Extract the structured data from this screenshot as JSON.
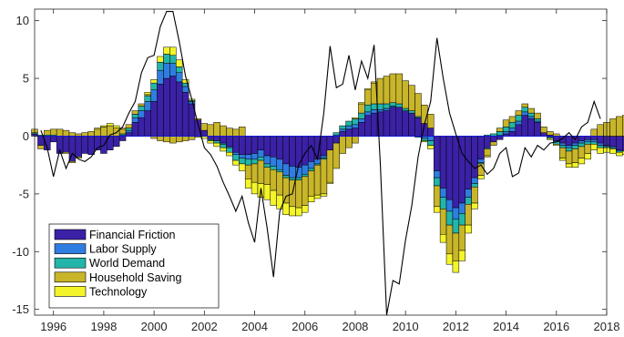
{
  "chart_data": {
    "type": "bar",
    "subtype": "stacked-bar-with-line",
    "title": "",
    "xlabel": "",
    "ylabel": "",
    "xlim": [
      1995.25,
      2018
    ],
    "ylim": [
      -15.5,
      11
    ],
    "xticks": [
      1996,
      1998,
      2000,
      2002,
      2004,
      2006,
      2008,
      2010,
      2012,
      2014,
      2016,
      2018
    ],
    "yticks": [
      -15,
      -10,
      -5,
      0,
      5,
      10
    ],
    "grid": false,
    "legend_position": "bottom-left",
    "start": [
      1995,
      2
    ],
    "freq": "quarterly",
    "series": [
      {
        "name": "Financial Friction",
        "color": "#3b21a6",
        "values": [
          0.2,
          -0.8,
          -1.2,
          -0.5,
          -1.5,
          -1.4,
          -2.2,
          -1.8,
          -1.5,
          -1.6,
          -1.2,
          -1.5,
          -1.2,
          -0.9,
          -0.4,
          0.3,
          1.2,
          1.6,
          2.2,
          3.0,
          4.5,
          5.0,
          5.2,
          4.7,
          3.8,
          2.8,
          1.4,
          0.5,
          -0.3,
          -0.4,
          -0.6,
          -0.9,
          -1.4,
          -1.6,
          -1.6,
          -1.5,
          -1.2,
          -1.7,
          -1.8,
          -2.0,
          -2.4,
          -2.6,
          -2.7,
          -2.5,
          -2.2,
          -2.0,
          -1.7,
          -1.2,
          -0.6,
          0.4,
          0.6,
          0.7,
          1.2,
          1.8,
          2.0,
          2.1,
          2.2,
          2.5,
          2.5,
          2.2,
          2.0,
          1.6,
          1.1,
          0.7,
          -3.0,
          -4.5,
          -5.5,
          -6.2,
          -5.8,
          -4.6,
          -3.6,
          -2.0,
          -1.0,
          -0.5,
          -0.3,
          0.2,
          0.4,
          1.0,
          1.8,
          1.5,
          1.2,
          0.3,
          0.1,
          -0.4,
          -0.6,
          -0.8,
          -0.6,
          -0.4,
          -0.3,
          -0.3,
          -0.6,
          -0.8,
          -0.9,
          -1.2,
          -1.3,
          -1.0,
          -0.8,
          -0.5,
          -0.2,
          0.1,
          0.2,
          0.4,
          0.6,
          0.9,
          1.2,
          1.6,
          2.1,
          2.7,
          3.1,
          3.3,
          3.1
        ]
      },
      {
        "name": "Labor Supply",
        "color": "#2f7de1",
        "values": [
          0,
          0,
          0,
          0,
          0,
          0,
          0,
          0,
          0,
          0,
          0,
          0,
          0,
          0,
          0.1,
          0.2,
          0.4,
          0.6,
          0.8,
          1.0,
          1.2,
          1.3,
          1.1,
          0.8,
          0.5,
          0.2,
          0,
          0,
          0,
          0,
          -0.1,
          -0.1,
          -0.2,
          -0.3,
          -0.4,
          -0.5,
          -0.6,
          -0.7,
          -0.8,
          -0.9,
          -1.0,
          -1.0,
          -0.9,
          -0.8,
          -0.6,
          -0.4,
          -0.2,
          0,
          0.1,
          0.2,
          0.3,
          0.3,
          0.3,
          0.3,
          0.3,
          0.2,
          0.2,
          0.1,
          0,
          0,
          0,
          -0.1,
          -0.2,
          -0.4,
          -0.6,
          -0.8,
          -1.0,
          -1.0,
          -0.9,
          -0.7,
          -0.5,
          -0.3,
          -0.1,
          0,
          0.1,
          0.2,
          0.3,
          0.3,
          0.3,
          0.2,
          0.1,
          0,
          -0.1,
          -0.1,
          -0.2,
          -0.2,
          -0.2,
          -0.2,
          -0.2,
          -0.2,
          -0.2,
          -0.1,
          -0.1,
          -0.1,
          0,
          0,
          0,
          0,
          0,
          0.1,
          0.1,
          0.1,
          0.1,
          0.1,
          0.1,
          0.2,
          0.2,
          0.2,
          0.2,
          0.2,
          0.2
        ]
      },
      {
        "name": "World Demand",
        "color": "#23b5a9",
        "values": [
          0.1,
          0.1,
          0.1,
          0.1,
          0,
          0,
          0,
          0,
          0,
          0,
          0,
          0,
          0,
          0,
          0.1,
          0.2,
          0.3,
          0.4,
          0.5,
          0.6,
          0.7,
          0.8,
          0.7,
          0.5,
          0.3,
          0.1,
          0,
          0,
          -0.1,
          -0.2,
          -0.3,
          -0.4,
          -0.5,
          -0.5,
          -0.5,
          -0.4,
          -0.3,
          -0.3,
          -0.3,
          -0.2,
          -0.2,
          -0.2,
          -0.2,
          -0.2,
          -0.2,
          -0.1,
          -0.1,
          0,
          0.2,
          0.3,
          0.4,
          0.5,
          0.5,
          0.6,
          0.5,
          0.5,
          0.4,
          0.3,
          0.3,
          0.2,
          0.2,
          0.1,
          -0.2,
          -0.4,
          -0.7,
          -1.0,
          -1.2,
          -1.2,
          -1.0,
          -0.6,
          -0.3,
          -0.1,
          0.1,
          0.2,
          0.3,
          0.4,
          0.5,
          0.5,
          0.4,
          0.3,
          0.2,
          0,
          -0.1,
          -0.2,
          -0.2,
          -0.3,
          -0.3,
          -0.3,
          -0.2,
          -0.2,
          -0.2,
          -0.1,
          -0.1,
          -0.1,
          0,
          0,
          0,
          0,
          0.1,
          0.1,
          0.1,
          0.1,
          0.1,
          0.1,
          0.1,
          0.1,
          0.1,
          0.1,
          0.1,
          0.1,
          0.1
        ]
      },
      {
        "name": "Household Saving",
        "color": "#c8b52a",
        "values": [
          0.3,
          -0.3,
          0.4,
          0.5,
          0.6,
          0.5,
          0.3,
          0.2,
          0.3,
          0.4,
          0.6,
          0.8,
          0.9,
          0.7,
          0.4,
          0.3,
          0.3,
          0.2,
          0.1,
          -0.2,
          -0.4,
          -0.5,
          -0.6,
          -0.5,
          -0.4,
          -0.3,
          0.1,
          0.6,
          1.0,
          1.2,
          0.9,
          0.7,
          0.6,
          0.8,
          -1.2,
          -1.6,
          -2.0,
          -1.5,
          -1.8,
          -2.0,
          -2.2,
          -2.3,
          -2.4,
          -2.5,
          -2.2,
          -2.6,
          -3.0,
          -2.8,
          -2.2,
          -1.5,
          -1.0,
          -0.6,
          0.8,
          1.3,
          1.8,
          2.2,
          2.4,
          2.5,
          2.6,
          2.4,
          2.2,
          2.0,
          1.6,
          1.2,
          -1.8,
          -2.2,
          -2.5,
          -2.4,
          -2.2,
          -1.8,
          -1.4,
          -1.0,
          -0.6,
          -0.3,
          0.3,
          0.6,
          0.5,
          0.4,
          0.3,
          0.4,
          0.5,
          0.5,
          0.3,
          0.2,
          -0.9,
          -1.1,
          -1.2,
          -1.0,
          -0.8,
          0.6,
          1.0,
          1.2,
          1.5,
          1.7,
          1.8,
          1.6,
          1.3,
          1.1,
          0.9,
          0.7,
          0.5,
          0.4,
          0.2,
          0.2,
          0.1,
          -0.2,
          -0.4,
          -0.7,
          -0.9,
          -0.9,
          -0.8
        ]
      },
      {
        "name": "Technology",
        "color": "#f4f42a",
        "values": [
          0,
          0,
          0,
          0,
          0,
          -0.1,
          -0.1,
          -0.1,
          0,
          0,
          0.1,
          0.1,
          0.2,
          0.2,
          0.1,
          0,
          0,
          0,
          0.2,
          0.3,
          0.5,
          0.6,
          0.7,
          0.6,
          0.3,
          0.1,
          -0.1,
          -0.2,
          -0.2,
          -0.3,
          -0.3,
          -0.3,
          -0.4,
          -0.6,
          -0.8,
          -1.0,
          -1.2,
          -1.3,
          -1.3,
          -1.2,
          -1.0,
          -0.8,
          -0.7,
          -0.6,
          -0.5,
          -0.3,
          -0.2,
          -0.1,
          0,
          0,
          0,
          0.1,
          0.1,
          0.1,
          0.1,
          0,
          0,
          0,
          0,
          0,
          0,
          0,
          -0.1,
          -0.3,
          -0.5,
          -0.7,
          -0.9,
          -1.0,
          -0.9,
          -0.7,
          -0.5,
          -0.3,
          -0.1,
          0,
          0,
          0,
          0,
          0,
          0,
          0,
          0,
          0,
          -0.1,
          -0.1,
          -0.2,
          -0.3,
          -0.4,
          -0.5,
          -0.5,
          -0.5,
          -0.5,
          -0.4,
          -0.4,
          -0.3,
          -0.3,
          -0.3,
          -0.3,
          -0.3,
          -0.3,
          -0.3,
          -0.3,
          -0.3,
          -0.3,
          -0.3,
          -0.3,
          -0.3,
          -0.3,
          -0.3,
          -0.3,
          -0.3,
          -0.3
        ]
      }
    ],
    "line": {
      "color": "#000000",
      "points": [
        [
          1995.5,
          0.5
        ],
        [
          1995.75,
          -1.0
        ],
        [
          1996.0,
          -3.5
        ],
        [
          1996.25,
          -1.2
        ],
        [
          1996.5,
          -2.8
        ],
        [
          1996.75,
          -1.5
        ],
        [
          1997.0,
          -2.0
        ],
        [
          1997.25,
          -2.2
        ],
        [
          1997.5,
          -1.8
        ],
        [
          1997.75,
          -1.0
        ],
        [
          1998.0,
          -0.8
        ],
        [
          1998.25,
          0.1
        ],
        [
          1998.5,
          0.3
        ],
        [
          1998.75,
          0.8
        ],
        [
          1999.0,
          2.0
        ],
        [
          1999.25,
          3.0
        ],
        [
          1999.5,
          5.5
        ],
        [
          1999.75,
          6.8
        ],
        [
          2000.0,
          7.0
        ],
        [
          2000.25,
          9.5
        ],
        [
          2000.5,
          10.8
        ],
        [
          2000.75,
          10.8
        ],
        [
          2001.0,
          8.2
        ],
        [
          2001.25,
          5.2
        ],
        [
          2001.5,
          3.2
        ],
        [
          2001.75,
          1.0
        ],
        [
          2002.0,
          -1.0
        ],
        [
          2002.25,
          -1.6
        ],
        [
          2002.5,
          -2.6
        ],
        [
          2002.75,
          -4.0
        ],
        [
          2003.0,
          -5.2
        ],
        [
          2003.25,
          -6.5
        ],
        [
          2003.5,
          -5.2
        ],
        [
          2003.75,
          -7.5
        ],
        [
          2004.0,
          -9.2
        ],
        [
          2004.25,
          -4.5
        ],
        [
          2004.5,
          -8.0
        ],
        [
          2004.75,
          -12.2
        ],
        [
          2005.0,
          -6.5
        ],
        [
          2005.25,
          -5.2
        ],
        [
          2005.5,
          -5.0
        ],
        [
          2005.75,
          -2.5
        ],
        [
          2006.0,
          -1.5
        ],
        [
          2006.25,
          -0.8
        ],
        [
          2006.5,
          -2.0
        ],
        [
          2006.75,
          2.0
        ],
        [
          2007.0,
          7.8
        ],
        [
          2007.25,
          4.2
        ],
        [
          2007.5,
          4.5
        ],
        [
          2007.75,
          7.0
        ],
        [
          2008.0,
          4.0
        ],
        [
          2008.25,
          6.5
        ],
        [
          2008.5,
          5.0
        ],
        [
          2008.75,
          7.9
        ],
        [
          2009.0,
          -2.5
        ],
        [
          2009.25,
          -15.5
        ],
        [
          2009.5,
          -12.5
        ],
        [
          2009.75,
          -12.8
        ],
        [
          2010.0,
          -9.0
        ],
        [
          2010.25,
          -6.0
        ],
        [
          2010.5,
          -1.8
        ],
        [
          2010.75,
          1.0
        ],
        [
          2011.0,
          3.0
        ],
        [
          2011.25,
          8.5
        ],
        [
          2011.5,
          5.0
        ],
        [
          2011.75,
          2.0
        ],
        [
          2012.0,
          0.2
        ],
        [
          2012.25,
          -1.5
        ],
        [
          2012.5,
          -2.2
        ],
        [
          2012.75,
          -2.8
        ],
        [
          2013.0,
          -2.5
        ],
        [
          2013.25,
          -3.3
        ],
        [
          2013.5,
          -2.8
        ],
        [
          2013.75,
          -1.5
        ],
        [
          2014.0,
          -1.0
        ],
        [
          2014.25,
          -3.5
        ],
        [
          2014.5,
          -3.2
        ],
        [
          2014.75,
          -1.0
        ],
        [
          2015.0,
          -1.8
        ],
        [
          2015.25,
          -0.8
        ],
        [
          2015.5,
          -1.2
        ],
        [
          2015.75,
          -0.6
        ],
        [
          2016.0,
          -0.5
        ],
        [
          2016.25,
          -0.2
        ],
        [
          2016.5,
          0.3
        ],
        [
          2016.75,
          -0.3
        ],
        [
          2017.0,
          0.8
        ],
        [
          2017.25,
          1.2
        ],
        [
          2017.5,
          3.0
        ],
        [
          2017.75,
          1.5
        ]
      ]
    }
  }
}
